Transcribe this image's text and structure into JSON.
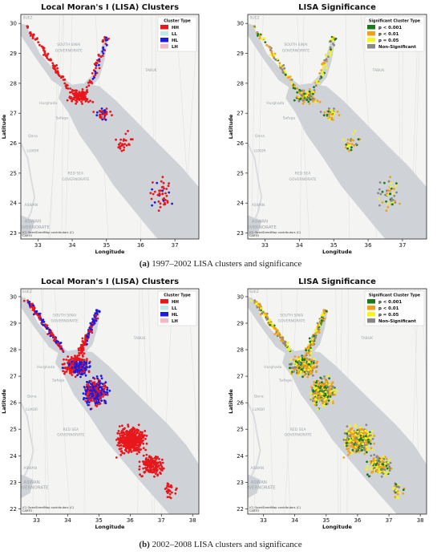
{
  "captions": [
    {
      "label": "(a)",
      "text": "1997–2002 LISA clusters and significance"
    },
    {
      "label": "(b)",
      "text": "2002–2008 LISA clusters and significance"
    }
  ],
  "map_labels": {
    "south_sinai": [
      "SOUTH SINAI",
      "GOVERNORATE"
    ],
    "red_sea": [
      "RED SEA",
      "GOVERNORATE"
    ],
    "aswan": [
      "ASWAN",
      "GOVERNORATE"
    ],
    "tabuk": "TABUK",
    "luxor": "LUXOR",
    "qena": "Qena",
    "hurghada": "Hurghada",
    "safaga": "Safaga",
    "aswan_city": "ASWAN",
    "suez": "SUEZ",
    "credit": [
      "(C) OpenStreetMap contributors (C)",
      "CARTO"
    ]
  },
  "colors": {
    "HH": "#e8171c",
    "LL": "#bfe8e8",
    "HL": "#1c1ce0",
    "LH": "#f7b6c7",
    "sig001": "#1a7a1a",
    "sig01": "#f2a01a",
    "sig05": "#f5f51a",
    "nonsig": "#888888",
    "sea": "#cfd3d7",
    "land": "#f4f4f2"
  },
  "chart_data": [
    {
      "type": "scatter",
      "title": "Local Moran's I (LISA) Clusters",
      "xlabel": "Longitude",
      "ylabel": "Latitude",
      "xlim": [
        32.5,
        37.7
      ],
      "ylim": [
        22.8,
        30.3
      ],
      "xticks": [
        33,
        34,
        35,
        36,
        37
      ],
      "yticks": [
        23,
        24,
        25,
        26,
        27,
        28,
        29,
        30
      ],
      "legend": {
        "title": "Cluster Type",
        "placement": "top-right",
        "entries": [
          "HH",
          "LL",
          "HL",
          "LH"
        ]
      },
      "series": [
        {
          "name": "HH",
          "approx_points": 300
        },
        {
          "name": "LL",
          "approx_points": 0
        },
        {
          "name": "HL",
          "approx_points": 70
        },
        {
          "name": "LH",
          "approx_points": 0
        }
      ]
    },
    {
      "type": "scatter",
      "title": "LISA Significance",
      "xlabel": "Longitude",
      "ylabel": "Latitude",
      "xlim": [
        32.5,
        37.7
      ],
      "ylim": [
        22.8,
        30.3
      ],
      "xticks": [
        33,
        34,
        35,
        36,
        37
      ],
      "yticks": [
        23,
        24,
        25,
        26,
        27,
        28,
        29,
        30
      ],
      "legend": {
        "title": "Significant Cluster Type",
        "placement": "top-right",
        "entries": [
          "p < 0.001",
          "p < 0.01",
          "p = 0.05",
          "Non-Significant"
        ]
      },
      "series": [
        {
          "name": "p < 0.001",
          "approx_points": 60
        },
        {
          "name": "p < 0.01",
          "approx_points": 120
        },
        {
          "name": "p = 0.05",
          "approx_points": 150
        },
        {
          "name": "Non-Significant",
          "approx_points": 110
        }
      ]
    },
    {
      "type": "scatter",
      "title": "Local Moran's I (LISA) Clusters",
      "xlabel": "Longitude",
      "ylabel": "Latitude",
      "xlim": [
        32.5,
        38.2
      ],
      "ylim": [
        21.8,
        30.3
      ],
      "xticks": [
        33,
        34,
        35,
        36,
        37,
        38
      ],
      "yticks": [
        22,
        23,
        24,
        25,
        26,
        27,
        28,
        29,
        30
      ],
      "legend": {
        "title": "Cluster Type",
        "placement": "top-right",
        "entries": [
          "HH",
          "LL",
          "HL",
          "LH"
        ]
      },
      "series": [
        {
          "name": "HH",
          "approx_points": 900
        },
        {
          "name": "LL",
          "approx_points": 0
        },
        {
          "name": "HL",
          "approx_points": 450
        },
        {
          "name": "LH",
          "approx_points": 0
        }
      ]
    },
    {
      "type": "scatter",
      "title": "LISA Significance",
      "xlabel": "Longitude",
      "ylabel": "Latitude",
      "xlim": [
        32.5,
        38.2
      ],
      "ylim": [
        21.8,
        30.3
      ],
      "xticks": [
        33,
        34,
        35,
        36,
        37,
        38
      ],
      "yticks": [
        22,
        23,
        24,
        25,
        26,
        27,
        28,
        29,
        30
      ],
      "legend": {
        "title": "Significant Cluster Type",
        "placement": "top-right",
        "entries": [
          "p < 0.001",
          "p < 0.01",
          "p = 0.05",
          "Non-Significant"
        ]
      },
      "series": [
        {
          "name": "p < 0.001",
          "approx_points": 250
        },
        {
          "name": "p < 0.01",
          "approx_points": 550
        },
        {
          "name": "p = 0.05",
          "approx_points": 500
        },
        {
          "name": "Non-Significant",
          "approx_points": 350
        }
      ]
    }
  ]
}
